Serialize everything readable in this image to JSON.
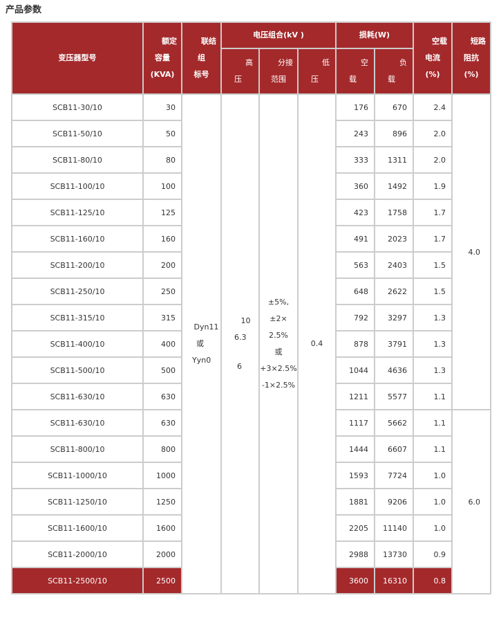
{
  "title": "产品参数",
  "header": {
    "model": "变压器型号",
    "capacity": [
      "额定",
      "容量",
      "(KVA)"
    ],
    "connection": [
      "联结",
      "组",
      "标号"
    ],
    "voltage": "电压组合(kV )",
    "hv": [
      "高",
      "压"
    ],
    "tap": [
      "分接",
      "范围"
    ],
    "lv": [
      "低",
      "压"
    ],
    "loss": "损耗(W)",
    "noload": [
      "空",
      "载"
    ],
    "load": [
      "负",
      "载"
    ],
    "current": [
      "空载",
      "电流",
      "(%)"
    ],
    "impedance": [
      "短路",
      "阻抗",
      "(%)"
    ]
  },
  "merged": {
    "connection": [
      "Dyn11",
      "或",
      "Yyn0"
    ],
    "hv": [
      "10",
      "6.3",
      "6"
    ],
    "tap": [
      "±5%,",
      "±2×",
      "2.5%",
      "或",
      "+3×2.5%",
      "-1×2.5%"
    ],
    "lv": "0.4",
    "impedance_a": "4.0",
    "impedance_b": "6.0"
  },
  "accent": "#a4292b",
  "rows": [
    [
      "SCB11-30/10",
      "30",
      "176",
      "670",
      "2.4"
    ],
    [
      "SCB11-50/10",
      "50",
      "243",
      "896",
      "2.0"
    ],
    [
      "SCB11-80/10",
      "80",
      "333",
      "1311",
      "2.0"
    ],
    [
      "SCB11-100/10",
      "100",
      "360",
      "1492",
      "1.9"
    ],
    [
      "SCB11-125/10",
      "125",
      "423",
      "1758",
      "1.7"
    ],
    [
      "SCB11-160/10",
      "160",
      "491",
      "2023",
      "1.7"
    ],
    [
      "SCB11-200/10",
      "200",
      "563",
      "2403",
      "1.5"
    ],
    [
      "SCB11-250/10",
      "250",
      "648",
      "2622",
      "1.5"
    ],
    [
      "SCB11-315/10",
      "315",
      "792",
      "3297",
      "1.3"
    ],
    [
      "SCB11-400/10",
      "400",
      "878",
      "3791",
      "1.3"
    ],
    [
      "SCB11-500/10",
      "500",
      "1044",
      "4636",
      "1.3"
    ],
    [
      "SCB11-630/10",
      "630",
      "1211",
      "5577",
      "1.1"
    ],
    [
      "SCB11-630/10",
      "630",
      "1117",
      "5662",
      "1.1"
    ],
    [
      "SCB11-800/10",
      "800",
      "1444",
      "6607",
      "1.1"
    ],
    [
      "SCB11-1000/10",
      "1000",
      "1593",
      "7724",
      "1.0"
    ],
    [
      "SCB11-1250/10",
      "1250",
      "1881",
      "9206",
      "1.0"
    ],
    [
      "SCB11-1600/10",
      "1600",
      "2205",
      "11140",
      "1.0"
    ],
    [
      "SCB11-2000/10",
      "2000",
      "2988",
      "13730",
      "0.9"
    ],
    [
      "SCB11-2500/10",
      "2500",
      "3600",
      "16310",
      "0.8"
    ]
  ]
}
